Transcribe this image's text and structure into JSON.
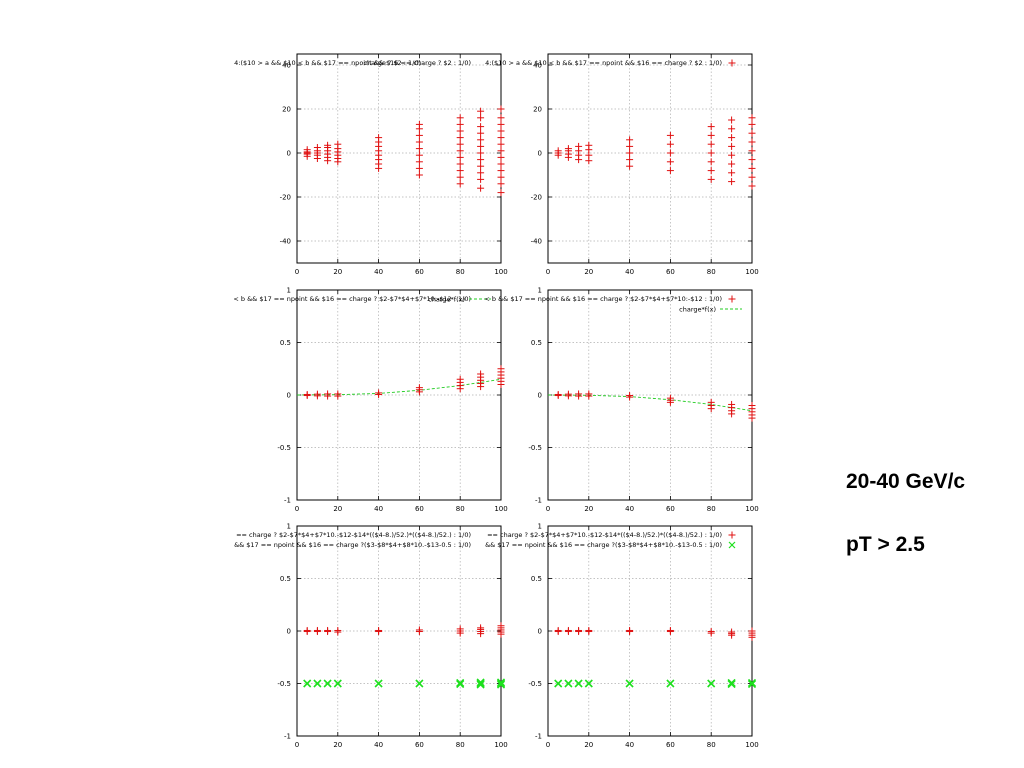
{
  "annotations": {
    "energy_range": "20-40 GeV/c",
    "pt_cut": "pT > 2.5"
  },
  "colors": {
    "series_red": "#e01010",
    "series_green": "#1ee01e",
    "fit_line": "#22cc22",
    "grid": "#b0b0b0",
    "axis": "#000000"
  },
  "chart_data": [
    {
      "type": "scatter",
      "header": "4:($10 > a && $10 < b && $17 == npoint && $16 == charge ? $2 : 1/0)",
      "overlap_header": "charge ? $2 : 1/0)",
      "xlim": [
        0,
        100
      ],
      "ylim": [
        -50,
        45
      ],
      "xticks": [
        0,
        20,
        40,
        60,
        80,
        100
      ],
      "yticks": [
        -40,
        -20,
        0,
        20,
        40
      ],
      "grid": true,
      "series": [
        {
          "marker": "plus",
          "color": "#e01010",
          "groups": [
            {
              "x": 5,
              "values": [
                -1.5,
                -0.5,
                0,
                0.5,
                1.5
              ]
            },
            {
              "x": 10,
              "values": [
                -2.5,
                -1,
                0,
                1,
                2.5
              ]
            },
            {
              "x": 15,
              "values": [
                -3.5,
                -2,
                -0.5,
                1,
                2.5,
                3.5
              ]
            },
            {
              "x": 20,
              "values": [
                -4,
                -2.5,
                -1,
                0.5,
                2,
                4
              ]
            },
            {
              "x": 40,
              "values": [
                -7,
                -5,
                -3,
                -1,
                1,
                3,
                5,
                7
              ]
            },
            {
              "x": 60,
              "values": [
                -10,
                -7,
                -4,
                -1,
                2,
                5,
                8,
                11,
                13
              ]
            },
            {
              "x": 80,
              "values": [
                -14,
                -11,
                -8,
                -5,
                -2,
                1,
                4,
                7,
                10,
                13,
                16
              ]
            },
            {
              "x": 90,
              "values": [
                -16,
                -12,
                -9,
                -6,
                -3,
                0,
                3,
                6,
                9,
                12,
                16,
                19
              ]
            },
            {
              "x": 100,
              "values": [
                -18,
                -14,
                -11,
                -8,
                -5,
                -2,
                1,
                4,
                7,
                10,
                13,
                16,
                20
              ]
            }
          ]
        }
      ]
    },
    {
      "type": "scatter",
      "header": "4:($10 > a && $10 < b && $17 == npoint && $16 == charge ? $2 : 1/0)",
      "xlim": [
        0,
        100
      ],
      "ylim": [
        -50,
        45
      ],
      "xticks": [
        0,
        20,
        40,
        60,
        80,
        100
      ],
      "yticks": [
        -40,
        -20,
        0,
        20,
        40
      ],
      "grid": true,
      "legend": [
        {
          "label": "",
          "marker": "plus",
          "color": "#e01010"
        }
      ],
      "series": [
        {
          "marker": "plus",
          "color": "#e01010",
          "groups": [
            {
              "x": 5,
              "values": [
                -1,
                0,
                1
              ]
            },
            {
              "x": 10,
              "values": [
                -2,
                -0.5,
                1,
                2
              ]
            },
            {
              "x": 15,
              "values": [
                -3,
                -1,
                1,
                3
              ]
            },
            {
              "x": 20,
              "values": [
                -3.5,
                -1,
                1.5,
                3.5
              ]
            },
            {
              "x": 40,
              "values": [
                -6,
                -3,
                0,
                3,
                6
              ]
            },
            {
              "x": 60,
              "values": [
                -8,
                -4,
                0,
                4,
                8
              ]
            },
            {
              "x": 80,
              "values": [
                -12,
                -8,
                -4,
                0,
                4,
                8,
                12
              ]
            },
            {
              "x": 90,
              "values": [
                -13,
                -9,
                -5,
                -1,
                3,
                7,
                11,
                15
              ]
            },
            {
              "x": 100,
              "values": [
                -15,
                -11,
                -7,
                -3,
                1,
                5,
                9,
                13,
                16
              ]
            }
          ]
        }
      ]
    },
    {
      "type": "scatter",
      "header": "< b && $17 == npoint && $16 == charge ? $2-$7*$4+$7*10:-$12 : 1/0)",
      "xlim": [
        0,
        100
      ],
      "ylim": [
        -1,
        1
      ],
      "xticks": [
        0,
        20,
        40,
        60,
        80,
        100
      ],
      "yticks": [
        -1,
        -0.5,
        0,
        0.5,
        1
      ],
      "grid": true,
      "legend": [
        {
          "label": "charge*f(x)",
          "marker": "dash",
          "color": "#22cc22"
        }
      ],
      "fit": {
        "x": [
          0,
          20,
          40,
          60,
          80,
          100
        ],
        "y": [
          0,
          0.003,
          0.015,
          0.045,
          0.09,
          0.15
        ]
      },
      "series": [
        {
          "marker": "plus",
          "color": "#e01010",
          "groups": [
            {
              "x": 5,
              "values": [
                -0.005,
                0.005
              ]
            },
            {
              "x": 10,
              "values": [
                -0.008,
                0.008
              ]
            },
            {
              "x": 15,
              "values": [
                -0.01,
                0.01
              ]
            },
            {
              "x": 20,
              "values": [
                -0.01,
                0.01
              ]
            },
            {
              "x": 40,
              "values": [
                0.005,
                0.02
              ]
            },
            {
              "x": 60,
              "values": [
                0.03,
                0.05,
                0.07
              ]
            },
            {
              "x": 80,
              "values": [
                0.06,
                0.09,
                0.12,
                0.15
              ]
            },
            {
              "x": 90,
              "values": [
                0.08,
                0.11,
                0.14,
                0.17,
                0.2
              ]
            },
            {
              "x": 100,
              "values": [
                0.1,
                0.13,
                0.16,
                0.19,
                0.22,
                0.25
              ]
            }
          ]
        }
      ]
    },
    {
      "type": "scatter",
      "header": "< b && $17 == npoint && $16 == charge ? $2-$7*$4+$7*10:-$12 : 1/0)",
      "xlim": [
        0,
        100
      ],
      "ylim": [
        -1,
        1
      ],
      "xticks": [
        0,
        20,
        40,
        60,
        80,
        100
      ],
      "yticks": [
        -1,
        -0.5,
        0,
        0.5,
        1
      ],
      "grid": true,
      "legend": [
        {
          "label": "",
          "marker": "plus",
          "color": "#e01010"
        },
        {
          "label": "charge*f(x)",
          "marker": "dash",
          "color": "#22cc22"
        }
      ],
      "fit": {
        "x": [
          0,
          20,
          40,
          60,
          80,
          100
        ],
        "y": [
          0,
          -0.003,
          -0.015,
          -0.045,
          -0.09,
          -0.15
        ]
      },
      "series": [
        {
          "marker": "plus",
          "color": "#e01010",
          "groups": [
            {
              "x": 5,
              "values": [
                -0.005,
                0.005
              ]
            },
            {
              "x": 10,
              "values": [
                -0.008,
                0.008
              ]
            },
            {
              "x": 15,
              "values": [
                -0.01,
                0.01
              ]
            },
            {
              "x": 20,
              "values": [
                -0.01,
                0.01
              ]
            },
            {
              "x": 40,
              "values": [
                -0.02,
                -0.005
              ]
            },
            {
              "x": 60,
              "values": [
                -0.07,
                -0.05,
                -0.03
              ]
            },
            {
              "x": 80,
              "values": [
                -0.13,
                -0.1,
                -0.07
              ]
            },
            {
              "x": 90,
              "values": [
                -0.18,
                -0.15,
                -0.12,
                -0.09
              ]
            },
            {
              "x": 100,
              "values": [
                -0.22,
                -0.19,
                -0.16,
                -0.13,
                -0.1
              ]
            }
          ]
        }
      ]
    },
    {
      "type": "scatter",
      "header": "== charge ? $2-$7*$4+$7*10.-$12-$14*(($4-8.)/52.)*(($4-8.)/52.) : 1/0)",
      "header2": "&& $17 == npoint && $16 == charge ?($3-$8*$4+$8*10.-$13-0.5 : 1/0)",
      "xlim": [
        0,
        100
      ],
      "ylim": [
        -1,
        1
      ],
      "xticks": [
        0,
        20,
        40,
        60,
        80,
        100
      ],
      "yticks": [
        -1,
        -0.5,
        0,
        0.5,
        1
      ],
      "grid": true,
      "series": [
        {
          "marker": "plus",
          "color": "#e01010",
          "groups": [
            {
              "x": 5,
              "values": [
                -0.005,
                0.005
              ]
            },
            {
              "x": 10,
              "values": [
                -0.005,
                0.005
              ]
            },
            {
              "x": 15,
              "values": [
                -0.005,
                0.005
              ]
            },
            {
              "x": 20,
              "values": [
                -0.01,
                0.005
              ]
            },
            {
              "x": 40,
              "values": [
                -0.005,
                0.005
              ]
            },
            {
              "x": 60,
              "values": [
                -0.005,
                0.01
              ]
            },
            {
              "x": 80,
              "values": [
                -0.02,
                0,
                0.02
              ]
            },
            {
              "x": 90,
              "values": [
                -0.025,
                -0.005,
                0.015,
                0.03
              ]
            },
            {
              "x": 100,
              "values": [
                -0.03,
                -0.01,
                0.01,
                0.03,
                0.05
              ]
            }
          ]
        },
        {
          "marker": "cross",
          "color": "#1ee01e",
          "groups": [
            {
              "x": 5,
              "values": [
                -0.5
              ]
            },
            {
              "x": 10,
              "values": [
                -0.5
              ]
            },
            {
              "x": 15,
              "values": [
                -0.5
              ]
            },
            {
              "x": 20,
              "values": [
                -0.5
              ]
            },
            {
              "x": 40,
              "values": [
                -0.5
              ]
            },
            {
              "x": 60,
              "values": [
                -0.5
              ]
            },
            {
              "x": 80,
              "values": [
                -0.505,
                -0.495
              ]
            },
            {
              "x": 90,
              "values": [
                -0.51,
                -0.5,
                -0.49
              ]
            },
            {
              "x": 100,
              "values": [
                -0.51,
                -0.5,
                -0.49
              ]
            }
          ]
        }
      ]
    },
    {
      "type": "scatter",
      "header": "== charge ? $2-$7*$4+$7*10.-$12-$14*(($4-8.)/52.)*(($4-8.)/52.) : 1/0)",
      "header2": "&& $17 == npoint && $16 == charge ?($3-$8*$4+$8*10.-$13-0.5 : 1/0)",
      "xlim": [
        0,
        100
      ],
      "ylim": [
        -1,
        1
      ],
      "xticks": [
        0,
        20,
        40,
        60,
        80,
        100
      ],
      "yticks": [
        -1,
        -0.5,
        0,
        0.5,
        1
      ],
      "grid": true,
      "legend": [
        {
          "label": "",
          "marker": "plus",
          "color": "#e01010"
        },
        {
          "label": "",
          "marker": "cross",
          "color": "#1ee01e"
        }
      ],
      "series": [
        {
          "marker": "plus",
          "color": "#e01010",
          "groups": [
            {
              "x": 5,
              "values": [
                -0.005,
                0.005
              ]
            },
            {
              "x": 10,
              "values": [
                -0.005,
                0.005
              ]
            },
            {
              "x": 15,
              "values": [
                -0.005,
                0.005
              ]
            },
            {
              "x": 20,
              "values": [
                -0.005,
                0.005
              ]
            },
            {
              "x": 40,
              "values": [
                -0.005,
                0.005
              ]
            },
            {
              "x": 60,
              "values": [
                -0.005,
                0.005
              ]
            },
            {
              "x": 80,
              "values": [
                -0.02,
                -0.005
              ]
            },
            {
              "x": 90,
              "values": [
                -0.04,
                -0.025,
                -0.01
              ]
            },
            {
              "x": 100,
              "values": [
                -0.06,
                -0.04,
                -0.02,
                0
              ]
            }
          ]
        },
        {
          "marker": "cross",
          "color": "#1ee01e",
          "groups": [
            {
              "x": 5,
              "values": [
                -0.5
              ]
            },
            {
              "x": 10,
              "values": [
                -0.5
              ]
            },
            {
              "x": 15,
              "values": [
                -0.5
              ]
            },
            {
              "x": 20,
              "values": [
                -0.5
              ]
            },
            {
              "x": 40,
              "values": [
                -0.5
              ]
            },
            {
              "x": 60,
              "values": [
                -0.5
              ]
            },
            {
              "x": 80,
              "values": [
                -0.5
              ]
            },
            {
              "x": 90,
              "values": [
                -0.505,
                -0.495
              ]
            },
            {
              "x": 100,
              "values": [
                -0.505,
                -0.495
              ]
            }
          ]
        }
      ]
    }
  ]
}
